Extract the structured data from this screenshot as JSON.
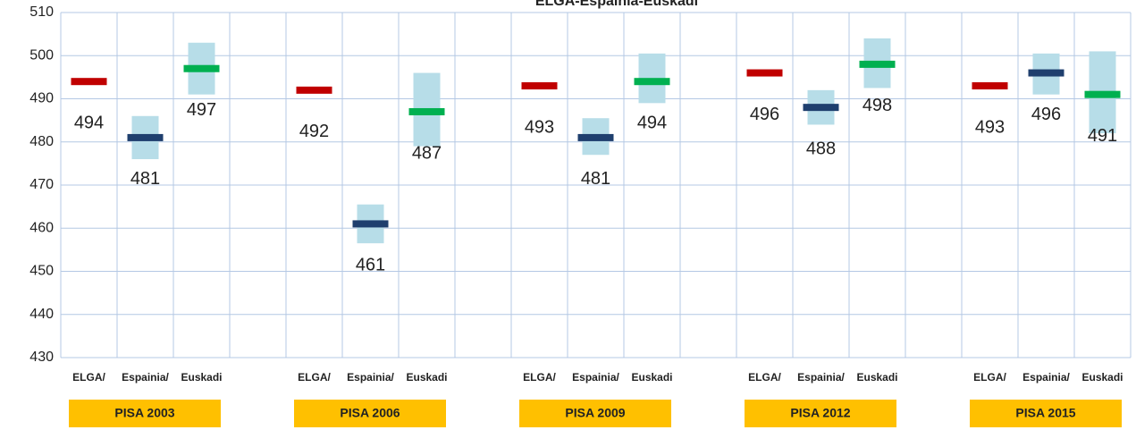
{
  "chart_data": {
    "type": "range_marker",
    "title": "ELGA-Espainia-Euskadi",
    "categories": [
      "ELGA/",
      "Espainia/",
      "Euskadi",
      null,
      "ELGA/",
      "Espainia/",
      "Euskadi",
      null,
      "ELGA/",
      "Espainia/",
      "Euskadi",
      null,
      "ELGA/",
      "Espainia/",
      "Euskadi",
      null,
      "ELGA/",
      "Espainia/",
      "Euskadi"
    ],
    "groups": [
      "PISA 2003",
      "PISA 2006",
      "PISA 2009",
      "PISA 2012",
      "PISA 2015"
    ],
    "values": [
      494,
      481,
      497,
      null,
      492,
      461,
      487,
      null,
      493,
      481,
      494,
      null,
      496,
      488,
      498,
      null,
      493,
      496,
      491
    ],
    "low": [
      null,
      476,
      491,
      null,
      null,
      456.5,
      479,
      null,
      null,
      477,
      489,
      null,
      null,
      484,
      492.5,
      null,
      null,
      491,
      482
    ],
    "high": [
      null,
      486,
      503,
      null,
      null,
      465.5,
      496,
      null,
      null,
      485.5,
      500.5,
      null,
      null,
      492,
      504,
      null,
      null,
      500.5,
      501
    ],
    "marker_colors": [
      "#c00000",
      "#1f3f6e",
      "#00b050"
    ],
    "range_color": "#b7dde8",
    "group_color": "#ffc000",
    "ylim": [
      430,
      510
    ],
    "yticks": [
      430,
      440,
      450,
      460,
      470,
      480,
      490,
      500,
      510
    ],
    "grid": true
  }
}
